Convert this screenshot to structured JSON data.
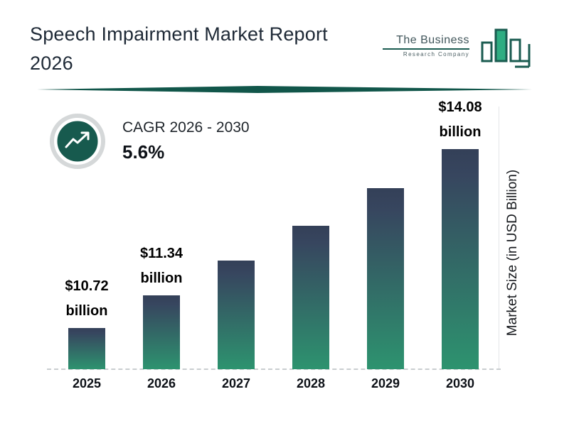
{
  "header": {
    "title_line1": "Speech Impairment Market Report",
    "title_line2": "2026",
    "logo": {
      "line1": "The Business",
      "line2": "Research Company"
    }
  },
  "cagr": {
    "label": "CAGR 2026 - 2030",
    "value": "5.6%"
  },
  "chart_data": {
    "type": "bar",
    "title": "Speech Impairment Market Report 2026",
    "categories": [
      "2025",
      "2026",
      "2027",
      "2028",
      "2029",
      "2030"
    ],
    "values": [
      10.72,
      11.34,
      11.98,
      12.64,
      13.35,
      14.08
    ],
    "bar_labels": [
      {
        "value": "$10.72",
        "unit": "billion"
      },
      {
        "value": "$11.34",
        "unit": "billion"
      },
      null,
      null,
      null,
      {
        "value": "$14.08",
        "unit": "billion"
      }
    ],
    "xlabel": "",
    "ylabel": "Market Size (in USD Billion)",
    "cagr_label": "CAGR 2026 - 2030",
    "cagr_value_pct": 5.6,
    "unit": "USD Billion",
    "legend": false,
    "grid": false,
    "colors": {
      "bar_gradient_top": "#344058",
      "bar_gradient_bottom": "#2d936f",
      "brand_teal": "#1a5b50",
      "divider_teal": "#11564a",
      "logo_green": "#2fad82"
    }
  }
}
